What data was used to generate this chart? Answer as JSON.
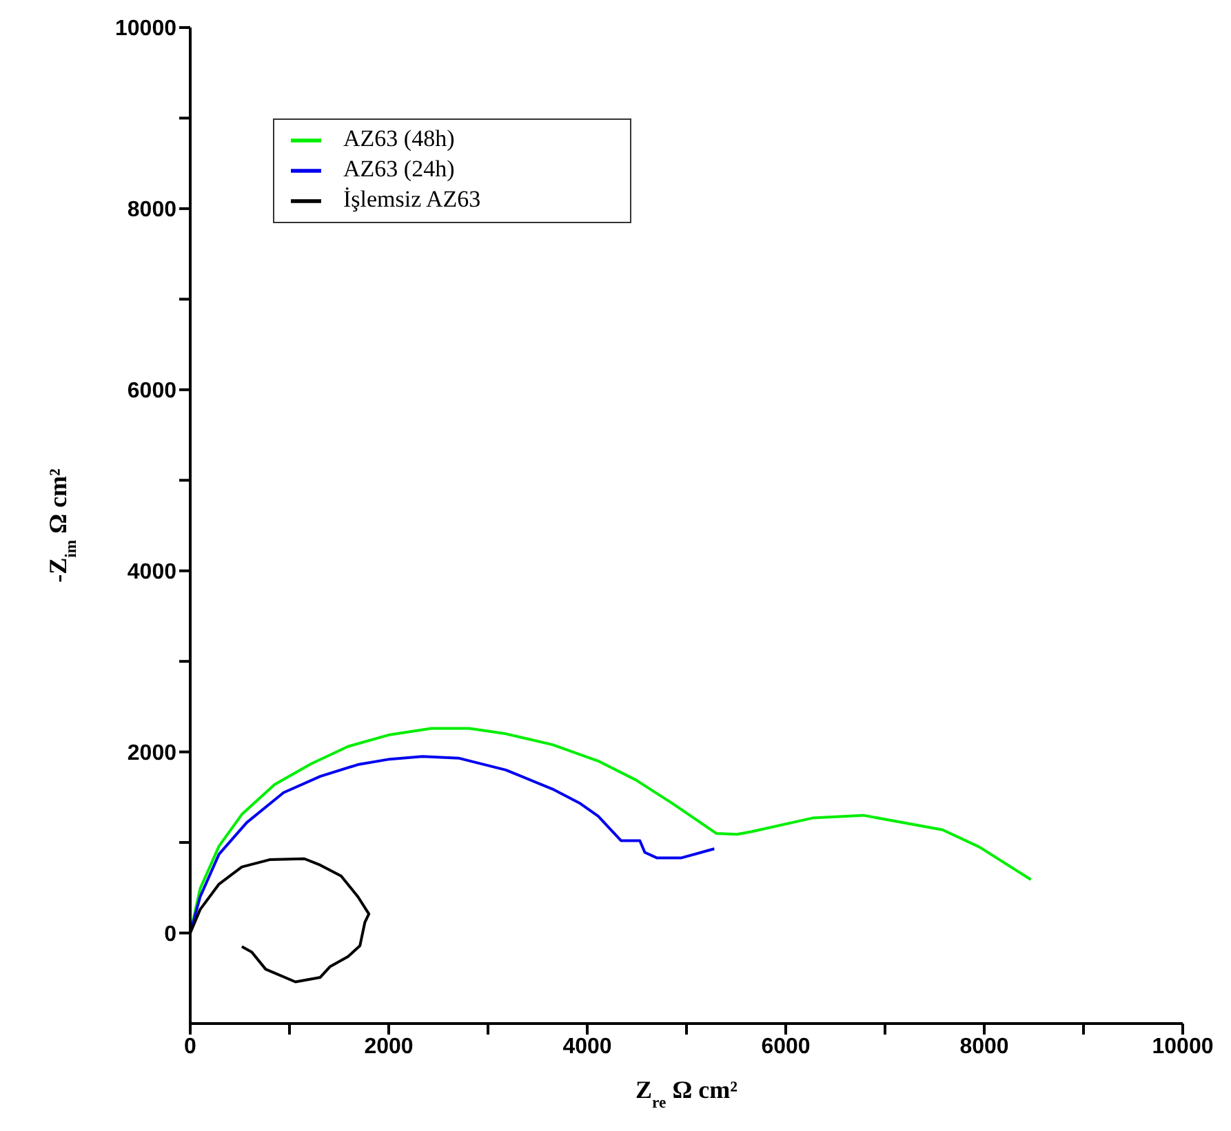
{
  "chart_data": {
    "type": "line",
    "xlabel": "Z$_{re}$ Ω cm²",
    "ylabel": "-Z$_{im}$ Ω cm²",
    "xlim": [
      0,
      10000
    ],
    "ylim": [
      -1000,
      10000
    ],
    "xticks": [
      0,
      {
        "value": 1000,
        "label": null
      },
      2000,
      {
        "value": 3000,
        "label": null
      },
      4000,
      {
        "value": 5000,
        "label": null
      },
      6000,
      {
        "value": 7000,
        "label": null
      },
      8000,
      {
        "value": 9000,
        "label": null
      },
      10000
    ],
    "yticks": [
      0,
      {
        "value": 1000,
        "label": null
      },
      2000,
      {
        "value": 3000,
        "label": null
      },
      4000,
      {
        "value": 5000,
        "label": null
      },
      6000,
      {
        "value": 7000,
        "label": null
      },
      8000,
      {
        "value": 9000,
        "label": null
      },
      10000
    ],
    "grid": false,
    "legend": "top left",
    "marker": "none",
    "series": [
      {
        "name": "AZ63 (48h)",
        "color": "#00ee00",
        "x": [
          0,
          100,
          290,
          520,
          850,
          1220,
          1590,
          2010,
          2430,
          2810,
          3180,
          3650,
          4110,
          4490,
          4860,
          5140,
          5300,
          5510,
          5660,
          6270,
          6780,
          7580,
          7950,
          8470
        ],
        "values": [
          0,
          490,
          960,
          1310,
          1640,
          1870,
          2060,
          2190,
          2260,
          2260,
          2200,
          2080,
          1900,
          1690,
          1430,
          1220,
          1100,
          1090,
          1120,
          1270,
          1300,
          1140,
          950,
          590
        ]
      },
      {
        "name": "AZ63 (24h)",
        "color": "#0000ee",
        "x": [
          0,
          100,
          290,
          570,
          940,
          1310,
          1690,
          2010,
          2340,
          2710,
          3180,
          3650,
          3930,
          4110,
          4340,
          4530,
          4580,
          4700,
          4950,
          5280
        ],
        "values": [
          0,
          400,
          870,
          1220,
          1550,
          1730,
          1860,
          1920,
          1950,
          1930,
          1800,
          1590,
          1430,
          1290,
          1020,
          1020,
          890,
          830,
          830,
          930
        ]
      },
      {
        "name": "İşlemsiz AZ63",
        "color": "#000000",
        "x": [
          0,
          100,
          290,
          520,
          800,
          1150,
          1310,
          1520,
          1690,
          1800,
          1760,
          1710,
          1590,
          1410,
          1310,
          1060,
          760,
          620,
          520
        ],
        "values": [
          0,
          260,
          540,
          730,
          810,
          820,
          750,
          630,
          400,
          210,
          120,
          -140,
          -260,
          -370,
          -490,
          -540,
          -400,
          -210,
          -150
        ]
      }
    ]
  }
}
